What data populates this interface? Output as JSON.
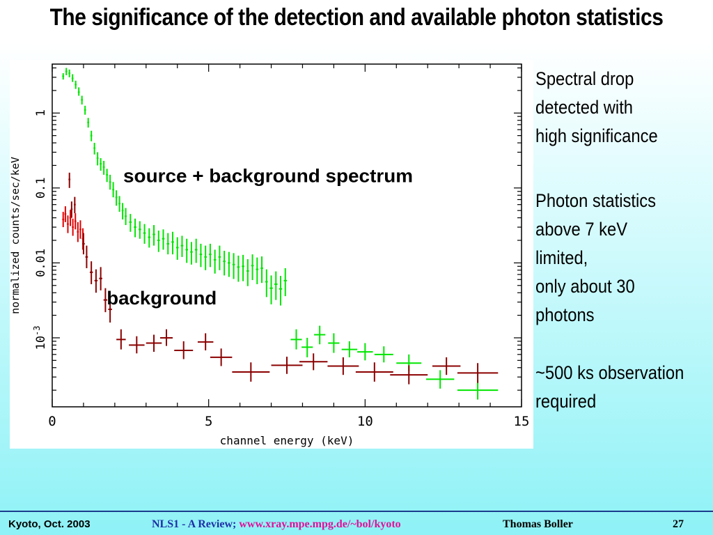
{
  "slide": {
    "title": "The significance of the detection and available photon statistics",
    "notes": [
      [
        "Spectral drop",
        "detected with",
        "high significance"
      ],
      [
        "Photon statistics",
        "above 7 keV",
        "limited,",
        "only about 30",
        "photons"
      ],
      [
        "~500 ks observation",
        "required"
      ]
    ],
    "footer": {
      "place_date": "Kyoto, Oct. 2003",
      "review": "NLS1 - A Review;",
      "url": "www.xray.mpe.mpg.de/~bol/kyoto",
      "author": "Thomas Boller",
      "page": "27"
    }
  },
  "chart_data": {
    "type": "scatter",
    "xlabel": "channel energy (keV)",
    "ylabel": "normalized counts/sec/keV",
    "xlim": [
      0,
      15
    ],
    "ylim": [
      0.00012,
      4.5
    ],
    "yscale": "log",
    "x_ticks": [
      0,
      5,
      10,
      15
    ],
    "y_ticks": [
      {
        "value": 0.001,
        "label": "10",
        "sup": "-3"
      },
      {
        "value": 0.01,
        "label": "0.01",
        "sup": ""
      },
      {
        "value": 0.1,
        "label": "0.1",
        "sup": ""
      },
      {
        "value": 1,
        "label": "1",
        "sup": ""
      }
    ],
    "annotations": [
      {
        "text": "source + background spectrum",
        "x": 6.9,
        "y": 0.12
      },
      {
        "text": "background",
        "x": 3.5,
        "y": 0.0028
      }
    ],
    "series": [
      {
        "color": "#00e600",
        "points": [
          {
            "x": 0.35,
            "y": 3.1,
            "dx": 0.03,
            "dy_lo": 2.8,
            "dy_hi": 3.4
          },
          {
            "x": 0.45,
            "y": 3.6,
            "dx": 0.03,
            "dy_lo": 3.2,
            "dy_hi": 4.0
          },
          {
            "x": 0.55,
            "y": 3.4,
            "dx": 0.03,
            "dy_lo": 3.0,
            "dy_hi": 3.8
          },
          {
            "x": 0.65,
            "y": 2.9,
            "dx": 0.03,
            "dy_lo": 2.6,
            "dy_hi": 3.3
          },
          {
            "x": 0.75,
            "y": 2.4,
            "dx": 0.03,
            "dy_lo": 2.1,
            "dy_hi": 2.7
          },
          {
            "x": 0.85,
            "y": 1.9,
            "dx": 0.03,
            "dy_lo": 1.7,
            "dy_hi": 2.2
          },
          {
            "x": 0.95,
            "y": 1.5,
            "dx": 0.03,
            "dy_lo": 1.3,
            "dy_hi": 1.7
          },
          {
            "x": 1.05,
            "y": 1.1,
            "dx": 0.03,
            "dy_lo": 0.95,
            "dy_hi": 1.25
          },
          {
            "x": 1.15,
            "y": 0.75,
            "dx": 0.03,
            "dy_lo": 0.64,
            "dy_hi": 0.86
          },
          {
            "x": 1.25,
            "y": 0.5,
            "dx": 0.03,
            "dy_lo": 0.42,
            "dy_hi": 0.58
          },
          {
            "x": 1.35,
            "y": 0.34,
            "dx": 0.03,
            "dy_lo": 0.28,
            "dy_hi": 0.4
          },
          {
            "x": 1.45,
            "y": 0.25,
            "dx": 0.03,
            "dy_lo": 0.2,
            "dy_hi": 0.3
          },
          {
            "x": 1.55,
            "y": 0.21,
            "dx": 0.03,
            "dy_lo": 0.17,
            "dy_hi": 0.25
          },
          {
            "x": 1.65,
            "y": 0.19,
            "dx": 0.03,
            "dy_lo": 0.15,
            "dy_hi": 0.23
          },
          {
            "x": 1.75,
            "y": 0.15,
            "dx": 0.03,
            "dy_lo": 0.12,
            "dy_hi": 0.18
          },
          {
            "x": 1.85,
            "y": 0.12,
            "dx": 0.03,
            "dy_lo": 0.095,
            "dy_hi": 0.15
          },
          {
            "x": 1.95,
            "y": 0.095,
            "dx": 0.03,
            "dy_lo": 0.075,
            "dy_hi": 0.12
          },
          {
            "x": 2.05,
            "y": 0.075,
            "dx": 0.03,
            "dy_lo": 0.058,
            "dy_hi": 0.093
          },
          {
            "x": 2.15,
            "y": 0.062,
            "dx": 0.03,
            "dy_lo": 0.048,
            "dy_hi": 0.078
          },
          {
            "x": 2.25,
            "y": 0.05,
            "dx": 0.03,
            "dy_lo": 0.038,
            "dy_hi": 0.063
          },
          {
            "x": 2.35,
            "y": 0.042,
            "dx": 0.03,
            "dy_lo": 0.032,
            "dy_hi": 0.054
          },
          {
            "x": 2.5,
            "y": 0.035,
            "dx": 0.04,
            "dy_lo": 0.026,
            "dy_hi": 0.045
          },
          {
            "x": 2.65,
            "y": 0.03,
            "dx": 0.04,
            "dy_lo": 0.022,
            "dy_hi": 0.039
          },
          {
            "x": 2.8,
            "y": 0.028,
            "dx": 0.04,
            "dy_lo": 0.021,
            "dy_hi": 0.036
          },
          {
            "x": 2.95,
            "y": 0.025,
            "dx": 0.04,
            "dy_lo": 0.018,
            "dy_hi": 0.033
          },
          {
            "x": 3.1,
            "y": 0.022,
            "dx": 0.04,
            "dy_lo": 0.016,
            "dy_hi": 0.029
          },
          {
            "x": 3.25,
            "y": 0.024,
            "dx": 0.04,
            "dy_lo": 0.017,
            "dy_hi": 0.032
          },
          {
            "x": 3.4,
            "y": 0.02,
            "dx": 0.04,
            "dy_lo": 0.014,
            "dy_hi": 0.027
          },
          {
            "x": 3.55,
            "y": 0.021,
            "dx": 0.04,
            "dy_lo": 0.015,
            "dy_hi": 0.028
          },
          {
            "x": 3.7,
            "y": 0.018,
            "dx": 0.04,
            "dy_lo": 0.013,
            "dy_hi": 0.025
          },
          {
            "x": 3.85,
            "y": 0.019,
            "dx": 0.04,
            "dy_lo": 0.013,
            "dy_hi": 0.026
          },
          {
            "x": 4.0,
            "y": 0.016,
            "dx": 0.04,
            "dy_lo": 0.011,
            "dy_hi": 0.022
          },
          {
            "x": 4.15,
            "y": 0.017,
            "dx": 0.04,
            "dy_lo": 0.012,
            "dy_hi": 0.023
          },
          {
            "x": 4.3,
            "y": 0.015,
            "dx": 0.04,
            "dy_lo": 0.01,
            "dy_hi": 0.021
          },
          {
            "x": 4.45,
            "y": 0.014,
            "dx": 0.04,
            "dy_lo": 0.0095,
            "dy_hi": 0.019
          },
          {
            "x": 4.6,
            "y": 0.015,
            "dx": 0.04,
            "dy_lo": 0.01,
            "dy_hi": 0.021
          },
          {
            "x": 4.75,
            "y": 0.013,
            "dx": 0.04,
            "dy_lo": 0.0088,
            "dy_hi": 0.018
          },
          {
            "x": 4.9,
            "y": 0.012,
            "dx": 0.04,
            "dy_lo": 0.008,
            "dy_hi": 0.017
          },
          {
            "x": 5.05,
            "y": 0.013,
            "dx": 0.04,
            "dy_lo": 0.0088,
            "dy_hi": 0.018
          },
          {
            "x": 5.2,
            "y": 0.011,
            "dx": 0.04,
            "dy_lo": 0.0072,
            "dy_hi": 0.015
          },
          {
            "x": 5.35,
            "y": 0.012,
            "dx": 0.04,
            "dy_lo": 0.008,
            "dy_hi": 0.017
          },
          {
            "x": 5.5,
            "y": 0.0105,
            "dx": 0.04,
            "dy_lo": 0.0068,
            "dy_hi": 0.0145
          },
          {
            "x": 5.65,
            "y": 0.01,
            "dx": 0.04,
            "dy_lo": 0.0065,
            "dy_hi": 0.014
          },
          {
            "x": 5.8,
            "y": 0.0095,
            "dx": 0.04,
            "dy_lo": 0.0061,
            "dy_hi": 0.0135
          },
          {
            "x": 5.95,
            "y": 0.0088,
            "dx": 0.04,
            "dy_lo": 0.0056,
            "dy_hi": 0.0125
          },
          {
            "x": 6.1,
            "y": 0.009,
            "dx": 0.04,
            "dy_lo": 0.0057,
            "dy_hi": 0.0128
          },
          {
            "x": 6.25,
            "y": 0.0078,
            "dx": 0.04,
            "dy_lo": 0.0049,
            "dy_hi": 0.0112
          },
          {
            "x": 6.4,
            "y": 0.0092,
            "dx": 0.04,
            "dy_lo": 0.0059,
            "dy_hi": 0.013
          },
          {
            "x": 6.55,
            "y": 0.0082,
            "dx": 0.04,
            "dy_lo": 0.0052,
            "dy_hi": 0.0118
          },
          {
            "x": 6.7,
            "y": 0.0085,
            "dx": 0.04,
            "dy_lo": 0.0054,
            "dy_hi": 0.0122
          },
          {
            "x": 6.85,
            "y": 0.0056,
            "dx": 0.04,
            "dy_lo": 0.0035,
            "dy_hi": 0.0082
          },
          {
            "x": 7.0,
            "y": 0.0046,
            "dx": 0.05,
            "dy_lo": 0.0028,
            "dy_hi": 0.0068
          },
          {
            "x": 7.15,
            "y": 0.0052,
            "dx": 0.05,
            "dy_lo": 0.0032,
            "dy_hi": 0.0077
          },
          {
            "x": 7.3,
            "y": 0.0045,
            "dx": 0.05,
            "dy_lo": 0.0027,
            "dy_hi": 0.0067
          },
          {
            "x": 7.45,
            "y": 0.0058,
            "dx": 0.05,
            "dy_lo": 0.0036,
            "dy_hi": 0.0085
          },
          {
            "x": 7.8,
            "y": 0.00095,
            "dx": 0.18,
            "dy_lo": 0.0007,
            "dy_hi": 0.0013
          },
          {
            "x": 8.15,
            "y": 0.00075,
            "dx": 0.18,
            "dy_lo": 0.00055,
            "dy_hi": 0.001
          },
          {
            "x": 8.55,
            "y": 0.0011,
            "dx": 0.18,
            "dy_lo": 0.00082,
            "dy_hi": 0.00145
          },
          {
            "x": 9.0,
            "y": 0.00085,
            "dx": 0.18,
            "dy_lo": 0.00063,
            "dy_hi": 0.00115
          },
          {
            "x": 9.5,
            "y": 0.0007,
            "dx": 0.25,
            "dy_lo": 0.00055,
            "dy_hi": 0.0009
          },
          {
            "x": 10.0,
            "y": 0.00065,
            "dx": 0.25,
            "dy_lo": 0.0005,
            "dy_hi": 0.00085
          },
          {
            "x": 10.6,
            "y": 0.0006,
            "dx": 0.3,
            "dy_lo": 0.00047,
            "dy_hi": 0.00077
          },
          {
            "x": 11.4,
            "y": 0.00046,
            "dx": 0.4,
            "dy_lo": 0.00036,
            "dy_hi": 0.0006
          },
          {
            "x": 12.4,
            "y": 0.00028,
            "dx": 0.45,
            "dy_lo": 0.00021,
            "dy_hi": 0.00037
          },
          {
            "x": 13.6,
            "y": 0.0002,
            "dx": 0.65,
            "dy_lo": 0.00015,
            "dy_hi": 0.00027
          }
        ]
      },
      {
        "color": "#e00000",
        "points": [
          {
            "x": 0.35,
            "y": 0.038,
            "dx": 0.03,
            "dy_lo": 0.03,
            "dy_hi": 0.048
          },
          {
            "x": 0.42,
            "y": 0.045,
            "dx": 0.03,
            "dy_lo": 0.035,
            "dy_hi": 0.057
          },
          {
            "x": 0.5,
            "y": 0.033,
            "dx": 0.03,
            "dy_lo": 0.025,
            "dy_hi": 0.043
          },
          {
            "x": 0.58,
            "y": 0.04,
            "dx": 0.03,
            "dy_lo": 0.031,
            "dy_hi": 0.051
          },
          {
            "x": 0.66,
            "y": 0.03,
            "dx": 0.03,
            "dy_lo": 0.023,
            "dy_hi": 0.039
          },
          {
            "x": 0.74,
            "y": 0.036,
            "dx": 0.03,
            "dy_lo": 0.028,
            "dy_hi": 0.046
          },
          {
            "x": 0.82,
            "y": 0.026,
            "dx": 0.03,
            "dy_lo": 0.019,
            "dy_hi": 0.035
          },
          {
            "x": 0.9,
            "y": 0.028,
            "dx": 0.03,
            "dy_lo": 0.021,
            "dy_hi": 0.037
          },
          {
            "x": 0.98,
            "y": 0.021,
            "dx": 0.03,
            "dy_lo": 0.015,
            "dy_hi": 0.029
          }
        ]
      },
      {
        "color": "#8b0000",
        "points": [
          {
            "x": 0.55,
            "y": 0.13,
            "dx": 0.03,
            "dy_lo": 0.1,
            "dy_hi": 0.16
          },
          {
            "x": 0.62,
            "y": 0.052,
            "dx": 0.03,
            "dy_lo": 0.04,
            "dy_hi": 0.066
          },
          {
            "x": 0.72,
            "y": 0.06,
            "dx": 0.03,
            "dy_lo": 0.046,
            "dy_hi": 0.076
          },
          {
            "x": 1.0,
            "y": 0.018,
            "dx": 0.04,
            "dy_lo": 0.013,
            "dy_hi": 0.025
          },
          {
            "x": 1.1,
            "y": 0.012,
            "dx": 0.04,
            "dy_lo": 0.0085,
            "dy_hi": 0.017
          },
          {
            "x": 1.25,
            "y": 0.0075,
            "dx": 0.05,
            "dy_lo": 0.0052,
            "dy_hi": 0.0105
          },
          {
            "x": 1.4,
            "y": 0.0058,
            "dx": 0.05,
            "dy_lo": 0.004,
            "dy_hi": 0.0082
          },
          {
            "x": 1.55,
            "y": 0.0062,
            "dx": 0.05,
            "dy_lo": 0.0043,
            "dy_hi": 0.0088
          },
          {
            "x": 1.7,
            "y": 0.0032,
            "dx": 0.06,
            "dy_lo": 0.0022,
            "dy_hi": 0.0046
          },
          {
            "x": 1.85,
            "y": 0.0024,
            "dx": 0.06,
            "dy_lo": 0.0016,
            "dy_hi": 0.0035
          },
          {
            "x": 2.2,
            "y": 0.00095,
            "dx": 0.15,
            "dy_lo": 0.0007,
            "dy_hi": 0.0013
          },
          {
            "x": 2.7,
            "y": 0.0008,
            "dx": 0.25,
            "dy_lo": 0.00062,
            "dy_hi": 0.00105
          },
          {
            "x": 3.25,
            "y": 0.00085,
            "dx": 0.25,
            "dy_lo": 0.00065,
            "dy_hi": 0.0011
          },
          {
            "x": 3.65,
            "y": 0.001,
            "dx": 0.2,
            "dy_lo": 0.00078,
            "dy_hi": 0.0013
          },
          {
            "x": 4.2,
            "y": 0.00068,
            "dx": 0.3,
            "dy_lo": 0.00052,
            "dy_hi": 0.0009
          },
          {
            "x": 4.9,
            "y": 0.00088,
            "dx": 0.25,
            "dy_lo": 0.00068,
            "dy_hi": 0.00115
          },
          {
            "x": 5.4,
            "y": 0.00055,
            "dx": 0.35,
            "dy_lo": 0.00042,
            "dy_hi": 0.00072
          },
          {
            "x": 6.35,
            "y": 0.00035,
            "dx": 0.6,
            "dy_lo": 0.00026,
            "dy_hi": 0.00047
          },
          {
            "x": 7.5,
            "y": 0.00043,
            "dx": 0.5,
            "dy_lo": 0.00033,
            "dy_hi": 0.00056
          },
          {
            "x": 8.35,
            "y": 0.00048,
            "dx": 0.45,
            "dy_lo": 0.00037,
            "dy_hi": 0.00062
          },
          {
            "x": 9.3,
            "y": 0.00042,
            "dx": 0.5,
            "dy_lo": 0.00032,
            "dy_hi": 0.00055
          },
          {
            "x": 10.3,
            "y": 0.00035,
            "dx": 0.6,
            "dy_lo": 0.00026,
            "dy_hi": 0.00047
          },
          {
            "x": 11.4,
            "y": 0.00032,
            "dx": 0.6,
            "dy_lo": 0.00024,
            "dy_hi": 0.00043
          },
          {
            "x": 12.6,
            "y": 0.00042,
            "dx": 0.45,
            "dy_lo": 0.00032,
            "dy_hi": 0.00055
          },
          {
            "x": 13.6,
            "y": 0.00034,
            "dx": 0.65,
            "dy_lo": 0.00025,
            "dy_hi": 0.00046
          }
        ]
      }
    ]
  }
}
